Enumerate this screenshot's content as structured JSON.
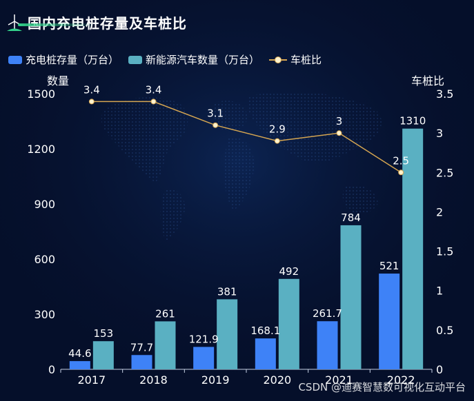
{
  "title": "国内充电桩存量及车桩比",
  "watermark": "CSDN @迪赛智慧数可视化互动平台",
  "colors": {
    "background": "#050f2a",
    "bar1": "#3e82f7",
    "bar2": "#5ab0c2",
    "line": "#d6a651",
    "marker": "#fff3cf",
    "title_accent": "#33d08a"
  },
  "chart_data": {
    "type": "bar+line",
    "title": "国内充电桩存量及车桩比",
    "categories": [
      "2017",
      "2018",
      "2019",
      "2020",
      "2021",
      "2022"
    ],
    "series": [
      {
        "name": "充电桩存量（万台）",
        "type": "bar",
        "axis": "left",
        "values": [
          44.6,
          77.7,
          121.9,
          168.1,
          261.7,
          521
        ]
      },
      {
        "name": "新能源汽车数量（万台）",
        "type": "bar",
        "axis": "left",
        "values": [
          153,
          261,
          381,
          492,
          784,
          1310
        ]
      },
      {
        "name": "车桩比",
        "type": "line",
        "axis": "right",
        "values": [
          3.4,
          3.4,
          3.1,
          2.9,
          3,
          2.5
        ]
      }
    ],
    "y_left": {
      "label": "数量",
      "min": 0,
      "max": 1500,
      "ticks": [
        0,
        300,
        600,
        900,
        1200,
        1500
      ]
    },
    "y_right": {
      "label": "车桩比",
      "min": 0,
      "max": 3.5,
      "ticks": [
        0,
        0.5,
        1,
        1.5,
        2,
        2.5,
        3,
        3.5
      ]
    },
    "legend_position": "top-left"
  }
}
